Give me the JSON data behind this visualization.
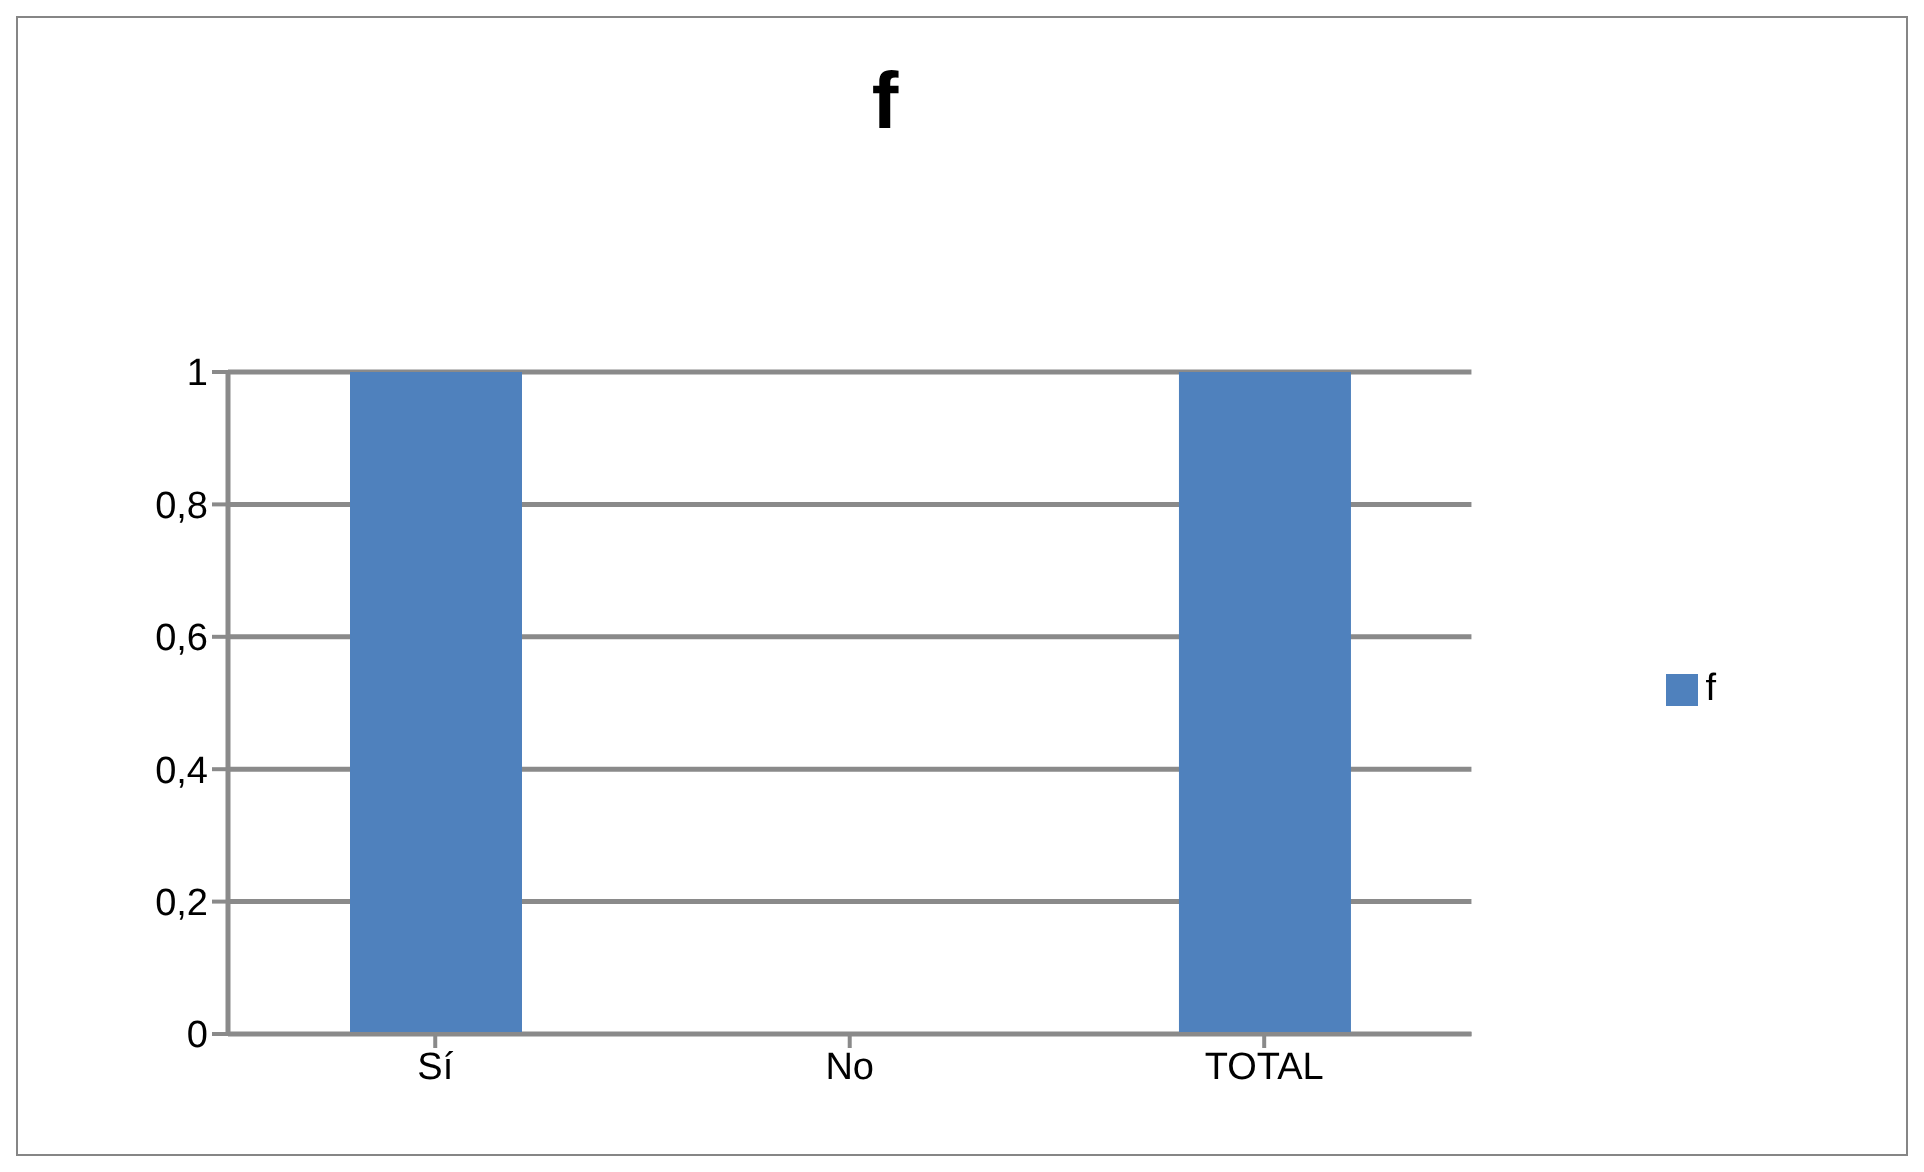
{
  "chart_data": {
    "type": "bar",
    "title": "f",
    "categories": [
      "Sí",
      "No",
      "TOTAL"
    ],
    "series": [
      {
        "name": "f",
        "color": "#4f81bd",
        "values": [
          1,
          0,
          1
        ]
      }
    ],
    "ylim": [
      0,
      1
    ],
    "yticks": [
      0,
      {
        "value": 0.2,
        "label": "0,2"
      },
      {
        "value": 0.4,
        "label": "0,4"
      },
      {
        "value": 0.6,
        "label": "0,6"
      },
      {
        "value": 0.8,
        "label": "0,8"
      },
      1
    ],
    "grid": "y",
    "legend": "right"
  }
}
